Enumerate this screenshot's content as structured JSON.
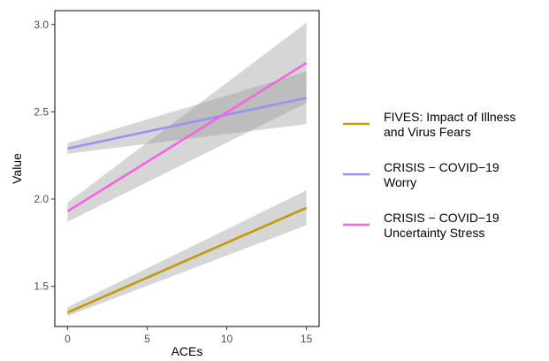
{
  "chart_data": {
    "type": "line",
    "title": "",
    "xlabel": "ACEs",
    "ylabel": "Value",
    "xlim": [
      -0.8,
      15.8
    ],
    "ylim": [
      1.27,
      3.08
    ],
    "xticks": [
      0,
      5,
      10,
      15
    ],
    "xtick_labels": [
      "0",
      "5",
      "10",
      "15"
    ],
    "yticks": [
      1.5,
      2.0,
      2.5,
      3.0
    ],
    "ytick_labels": [
      "1.5",
      "2.0",
      "2.5",
      "3.0"
    ],
    "grid": false,
    "legend_position": "right",
    "x": [
      0,
      15
    ],
    "series": [
      {
        "name": "FIVES: Impact of Illness and Virus Fears",
        "name_lines": [
          "FIVES: Impact of Illness",
          "and Virus Fears"
        ],
        "color": "#C49A00",
        "values": [
          1.35,
          1.95
        ],
        "ci_lower": [
          1.33,
          1.85
        ],
        "ci_upper": [
          1.38,
          2.05
        ]
      },
      {
        "name": "CRISIS − COVID−19 Worry",
        "name_lines": [
          "CRISIS − COVID−19",
          "Worry"
        ],
        "color": "#9F8FEF",
        "values": [
          2.29,
          2.58
        ],
        "ci_lower": [
          2.26,
          2.43
        ],
        "ci_upper": [
          2.32,
          2.73
        ]
      },
      {
        "name": "CRISIS − COVID−19 Uncertainty Stress",
        "name_lines": [
          "CRISIS − COVID−19",
          "Uncertainty Stress"
        ],
        "color": "#F564E3",
        "values": [
          1.93,
          2.78
        ],
        "ci_lower": [
          1.87,
          2.55
        ],
        "ci_upper": [
          1.98,
          3.01
        ]
      }
    ]
  }
}
